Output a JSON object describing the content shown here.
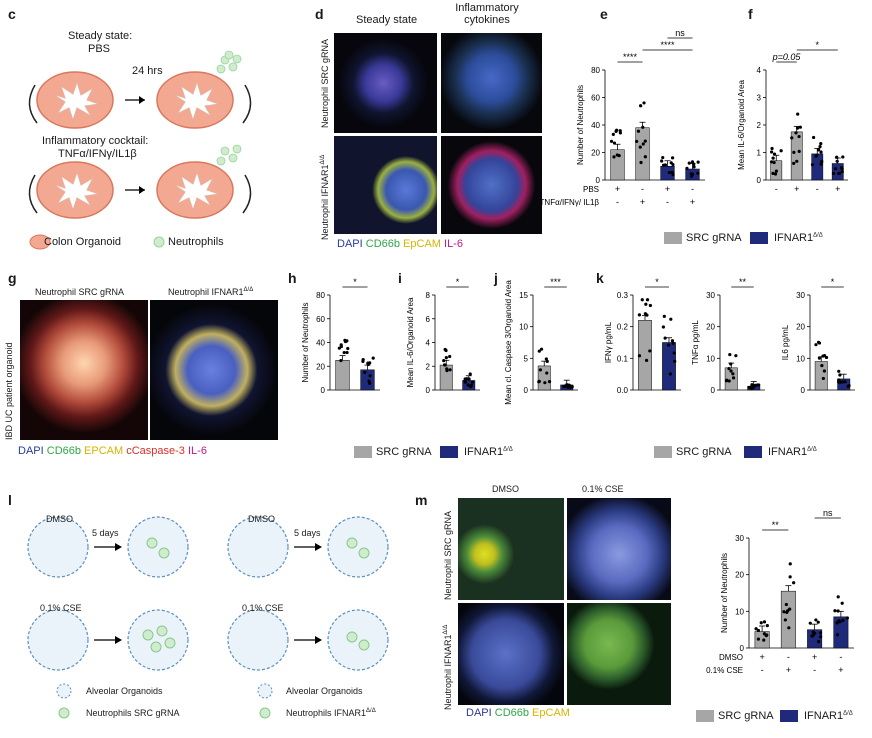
{
  "panels": {
    "c": {
      "label": "c",
      "steady_title": "Steady state:",
      "steady_sub": "PBS",
      "time": "24 hrs",
      "cocktail_title": "Inflammatory cocktail:",
      "cocktail_sub": "TNFα/IFNγ/IL1β",
      "legend_organoid": "Colon Organoid",
      "legend_neutro": "Neutrophils"
    },
    "d": {
      "label": "d",
      "col1": "Steady state",
      "col2": "Inflammatory cytokines",
      "row1": "Neutrophil SRC gRNA",
      "row2": "Neutrophil IFNAR1",
      "row2_sup": "Δ/Δ",
      "stain": [
        {
          "t": "DAPI",
          "c": "#2a3aa0"
        },
        {
          "t": " CD66b",
          "c": "#2ea84a"
        },
        {
          "t": " EpCAM",
          "c": "#d8b400"
        },
        {
          "t": " IL-6",
          "c": "#c2188a"
        }
      ]
    },
    "e": {
      "label": "e"
    },
    "f": {
      "label": "f"
    },
    "g": {
      "label": "g",
      "col1": "Neutrophil SRC gRNA",
      "col2": "Neutrophil IFNAR1",
      "col2_sup": "Δ/Δ",
      "side": "IBD UC patient organoid",
      "stain": [
        {
          "t": "DAPI",
          "c": "#2a3aa0"
        },
        {
          "t": " CD66b",
          "c": "#2ea84a"
        },
        {
          "t": " EPCAM",
          "c": "#d8b400"
        },
        {
          "t": " cCaspase-3",
          "c": "#d8302a"
        },
        {
          "t": " IL-6",
          "c": "#c2188a"
        }
      ]
    },
    "h": {
      "label": "h"
    },
    "i": {
      "label": "i"
    },
    "j": {
      "label": "j"
    },
    "k": {
      "label": "k"
    },
    "l": {
      "label": "l",
      "dmso": "DMSO",
      "cse": "0.1% CSE",
      "time": "5 days",
      "legend_alv": "Alveolar Organoids",
      "legend_src": "Neutrophils SRC gRNA",
      "legend_ifn": "Neutrophils IFNAR1",
      "legend_ifn_sup": "Δ/Δ"
    },
    "m": {
      "label": "m",
      "col1": "DMSO",
      "col2": "0.1% CSE",
      "row1": "Neutrophil SRC gRNA",
      "row2": "Neutrophil IFNAR1",
      "row2_sup": "Δ/Δ",
      "stain": [
        {
          "t": "DAPI",
          "c": "#2a3aa0"
        },
        {
          "t": " CD66b",
          "c": "#2ea84a"
        },
        {
          "t": " EpCAM",
          "c": "#d8b400"
        }
      ]
    }
  },
  "legends": {
    "src": "SRC gRNA",
    "ifn": "IFNAR1",
    "ifn_sup": "Δ/Δ",
    "colors": {
      "src": "#a6a6a6",
      "ifn": "#1f2a7a"
    }
  },
  "chart_data": [
    {
      "id": "e",
      "type": "bar",
      "ylabel": "Number of Neutrophils",
      "ylim": [
        0,
        80
      ],
      "yticks": [
        0,
        20,
        40,
        60,
        80
      ],
      "rows": [
        {
          "label": "PBS",
          "marks": [
            "+",
            "-",
            "+",
            "-"
          ]
        },
        {
          "label": "TNFα/IFNγ/ IL1β",
          "marks": [
            "-",
            "+",
            "-",
            "+"
          ]
        }
      ],
      "bars": [
        {
          "group": "SRC gRNA",
          "value": 22
        },
        {
          "group": "SRC gRNA",
          "value": 38
        },
        {
          "group": "IFNAR1",
          "value": 10
        },
        {
          "group": "IFNAR1",
          "value": 8
        }
      ],
      "sig": [
        {
          "from": 0,
          "to": 1,
          "text": "****"
        },
        {
          "from": 1,
          "to": 3,
          "text": "****"
        },
        {
          "from": 2,
          "to": 3,
          "text": "ns"
        }
      ]
    },
    {
      "id": "f",
      "type": "bar",
      "ylabel": "Mean IL-6/Organoid Area",
      "ylim": [
        0,
        4
      ],
      "yticks": [
        0,
        1,
        2,
        3,
        4
      ],
      "rows": [
        {
          "label": "",
          "marks": [
            "-",
            "+",
            "-",
            "+"
          ]
        }
      ],
      "bars": [
        {
          "group": "SRC gRNA",
          "value": 0.7
        },
        {
          "group": "SRC gRNA",
          "value": 1.75
        },
        {
          "group": "IFNAR1",
          "value": 0.95
        },
        {
          "group": "IFNAR1",
          "value": 0.6
        }
      ],
      "sig": [
        {
          "from": 0,
          "to": 1,
          "text": "p=0.05"
        },
        {
          "from": 1,
          "to": 3,
          "text": "*"
        }
      ]
    },
    {
      "id": "h",
      "type": "bar",
      "ylabel": "Number of Neutrophils",
      "ylim": [
        0,
        80
      ],
      "yticks": [
        0,
        20,
        40,
        60,
        80
      ],
      "bars": [
        {
          "group": "SRC gRNA",
          "value": 25
        },
        {
          "group": "IFNAR1",
          "value": 17
        }
      ],
      "sig": [
        {
          "from": 0,
          "to": 1,
          "text": "*"
        }
      ]
    },
    {
      "id": "i",
      "type": "bar",
      "ylabel": "Mean IL-6/Organoid Area",
      "ylim": [
        0,
        8
      ],
      "yticks": [
        0,
        2,
        4,
        6,
        8
      ],
      "bars": [
        {
          "group": "SRC gRNA",
          "value": 2.1
        },
        {
          "group": "IFNAR1",
          "value": 0.8
        }
      ],
      "sig": [
        {
          "from": 0,
          "to": 1,
          "text": "*"
        }
      ]
    },
    {
      "id": "j",
      "type": "bar",
      "ylabel": "Mean cl. Caspase 3/Organoid Area",
      "ylim": [
        0,
        15
      ],
      "yticks": [
        0,
        5,
        10,
        15
      ],
      "bars": [
        {
          "group": "SRC gRNA",
          "value": 3.8
        },
        {
          "group": "IFNAR1",
          "value": 0.8
        }
      ],
      "sig": [
        {
          "from": 0,
          "to": 1,
          "text": "***"
        }
      ]
    },
    {
      "id": "k1",
      "type": "bar",
      "ylabel": "IFNγ pg/mL",
      "ylim": [
        0,
        0.3
      ],
      "yticks": [
        0.0,
        0.1,
        0.2,
        0.3
      ],
      "bars": [
        {
          "group": "SRC gRNA",
          "value": 0.22
        },
        {
          "group": "IFNAR1",
          "value": 0.15
        }
      ],
      "sig": [
        {
          "from": 0,
          "to": 1,
          "text": "*"
        }
      ]
    },
    {
      "id": "k2",
      "type": "bar",
      "ylabel": "TNFα pg/mL",
      "ylim": [
        0,
        30
      ],
      "yticks": [
        0,
        10,
        20,
        30
      ],
      "bars": [
        {
          "group": "SRC gRNA",
          "value": 7
        },
        {
          "group": "IFNAR1",
          "value": 1.2
        }
      ],
      "sig": [
        {
          "from": 0,
          "to": 1,
          "text": "**"
        }
      ]
    },
    {
      "id": "k3",
      "type": "bar",
      "ylabel": "IL6 pg/mL",
      "ylim": [
        0,
        30
      ],
      "yticks": [
        0,
        10,
        20,
        30
      ],
      "bars": [
        {
          "group": "SRC gRNA",
          "value": 9
        },
        {
          "group": "IFNAR1",
          "value": 3.5
        }
      ],
      "sig": [
        {
          "from": 0,
          "to": 1,
          "text": "*"
        }
      ]
    },
    {
      "id": "m",
      "type": "bar",
      "ylabel": "Number of Neutrophils",
      "ylim": [
        0,
        30
      ],
      "yticks": [
        0,
        10,
        20,
        30
      ],
      "rows": [
        {
          "label": "DMSO",
          "marks": [
            "+",
            "-",
            "+",
            "-"
          ]
        },
        {
          "label": "0.1% CSE",
          "marks": [
            "-",
            "+",
            "-",
            "+"
          ]
        }
      ],
      "bars": [
        {
          "group": "SRC gRNA",
          "value": 4.5
        },
        {
          "group": "SRC gRNA",
          "value": 15.5
        },
        {
          "group": "IFNAR1",
          "value": 5
        },
        {
          "group": "IFNAR1",
          "value": 8.5
        }
      ],
      "sig": [
        {
          "from": 0,
          "to": 1,
          "text": "**"
        },
        {
          "from": 2,
          "to": 3,
          "text": "ns"
        }
      ]
    }
  ]
}
